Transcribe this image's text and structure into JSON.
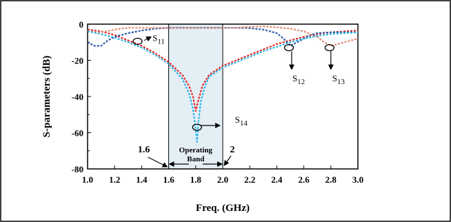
{
  "chart_data": {
    "type": "line",
    "xlabel": "Freq. (GHz)",
    "ylabel": "S-parameters (dB)",
    "xlim": [
      1.0,
      3.0
    ],
    "ylim": [
      -80,
      0
    ],
    "x_ticks": [
      "1.0",
      "1.2",
      "1.4",
      "1.6",
      "1.8",
      "2.0",
      "2.2",
      "2.4",
      "2.6",
      "2.8",
      "3.0"
    ],
    "y_ticks": [
      "0",
      "-20",
      "-40",
      "-60",
      "-80"
    ],
    "grid": false,
    "band": {
      "x_start": 1.6,
      "x_end": 2.0,
      "label_line1": "Operating",
      "label_line2": "Band",
      "left_marker": "1.6",
      "right_marker": "2"
    },
    "series": [
      {
        "name": "S11",
        "color": "#e8231f",
        "x": [
          1.0,
          1.1,
          1.2,
          1.3,
          1.4,
          1.5,
          1.6,
          1.7,
          1.75,
          1.78,
          1.8,
          1.82,
          1.85,
          1.9,
          2.0,
          2.1,
          2.2,
          2.3,
          2.4,
          2.5,
          2.6,
          2.7,
          2.8,
          2.9,
          3.0
        ],
        "y": [
          -3,
          -4,
          -6,
          -9,
          -12,
          -16,
          -21,
          -28,
          -34,
          -40,
          -48,
          -42,
          -34,
          -28,
          -23,
          -20,
          -17,
          -14,
          -11,
          -9,
          -7,
          -5.5,
          -4.5,
          -4,
          -3.5
        ]
      },
      {
        "name": "S12",
        "color": "#2a5aa8",
        "x": [
          1.0,
          1.05,
          1.1,
          1.15,
          1.2,
          1.3,
          1.4,
          1.5,
          1.6,
          1.7,
          1.8,
          1.9,
          2.0,
          2.1,
          2.2,
          2.3,
          2.4,
          2.45,
          2.5,
          2.55,
          2.6,
          2.65,
          2.7,
          2.8,
          2.9,
          3.0
        ],
        "y": [
          -10,
          -12,
          -12,
          -9,
          -7,
          -5,
          -3.5,
          -2.5,
          -2,
          -2,
          -2,
          -2,
          -2,
          -2,
          -2.2,
          -3,
          -5,
          -8,
          -12,
          -10,
          -8,
          -6,
          -5,
          -4.5,
          -4.5,
          -4.5
        ]
      },
      {
        "name": "S13",
        "color": "#e08870",
        "x": [
          1.0,
          1.1,
          1.2,
          1.3,
          1.4,
          1.5,
          1.6,
          1.7,
          1.8,
          1.9,
          2.0,
          2.1,
          2.2,
          2.3,
          2.4,
          2.5,
          2.6,
          2.7,
          2.75,
          2.8,
          2.85,
          2.9,
          3.0
        ],
        "y": [
          -4,
          -4.5,
          -3,
          -2,
          -2,
          -2,
          -2,
          -2,
          -2,
          -2,
          -2,
          -2,
          -1.5,
          -1.2,
          -1.8,
          -2.5,
          -4,
          -7,
          -10,
          -12,
          -11,
          -10,
          -8
        ]
      },
      {
        "name": "S14",
        "color": "#27b4e6",
        "x": [
          1.0,
          1.1,
          1.2,
          1.3,
          1.4,
          1.5,
          1.6,
          1.7,
          1.75,
          1.78,
          1.8,
          1.81,
          1.82,
          1.84,
          1.87,
          1.9,
          2.0,
          2.1,
          2.2,
          2.3,
          2.4,
          2.5,
          2.6,
          2.7,
          2.8,
          2.9,
          3.0
        ],
        "y": [
          -4,
          -5.5,
          -7.5,
          -10,
          -13,
          -17,
          -22,
          -30,
          -38,
          -47,
          -58,
          -65,
          -54,
          -42,
          -34,
          -29,
          -24,
          -21,
          -18,
          -15,
          -12.5,
          -10,
          -8,
          -6.5,
          -5.5,
          -5,
          -4.5
        ]
      }
    ],
    "annotations": [
      {
        "label": "S",
        "sub": "11"
      },
      {
        "label": "S",
        "sub": "12"
      },
      {
        "label": "S",
        "sub": "13"
      },
      {
        "label": "S",
        "sub": "14"
      }
    ]
  }
}
